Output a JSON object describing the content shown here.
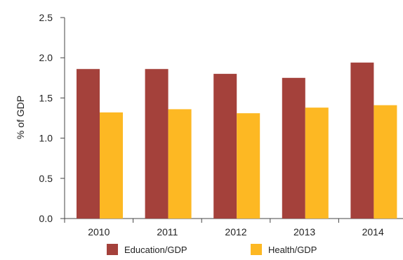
{
  "chart_data": {
    "type": "bar",
    "categories": [
      "2010",
      "2011",
      "2012",
      "2013",
      "2014"
    ],
    "series": [
      {
        "name": "Education/GDP",
        "color": "#a4413b",
        "values": [
          1.86,
          1.86,
          1.8,
          1.75,
          1.94
        ]
      },
      {
        "name": "Health/GDP",
        "color": "#fdb823",
        "values": [
          1.32,
          1.36,
          1.31,
          1.38,
          1.41
        ]
      }
    ],
    "title": "",
    "xlabel": "",
    "ylabel": "% of GDP",
    "ylim": [
      0,
      2.5
    ],
    "yticks": [
      "0.0",
      "0.5",
      "1.0",
      "1.5",
      "2.0",
      "2.5"
    ],
    "grid": false,
    "legend_position": "bottom"
  }
}
